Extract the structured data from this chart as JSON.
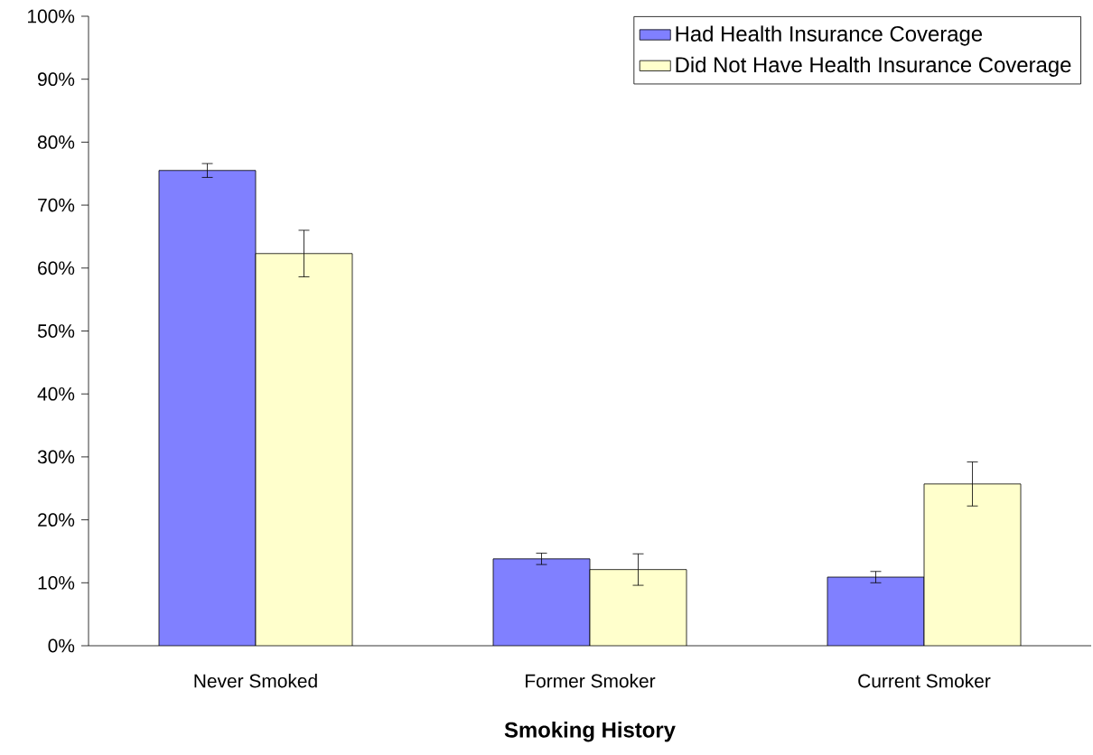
{
  "chart_data": {
    "type": "bar",
    "xlabel": "Smoking History",
    "categories": [
      "Never Smoked",
      "Former Smoker",
      "Current Smoker"
    ],
    "series": [
      {
        "name": "Had Health Insurance Coverage",
        "color": "#8080ff",
        "values": [
          75.5,
          13.8,
          10.9
        ],
        "errors": [
          1.1,
          0.9,
          0.9
        ]
      },
      {
        "name": "Did Not Have Health Insurance Coverage",
        "color": "#ffffcc",
        "values": [
          62.3,
          12.1,
          25.7
        ],
        "errors": [
          3.7,
          2.5,
          3.5
        ]
      }
    ],
    "ylim": [
      0,
      100
    ],
    "yticks": [
      {
        "value": 0,
        "label": "0%"
      },
      {
        "value": 10,
        "label": "10%"
      },
      {
        "value": 20,
        "label": "20%"
      },
      {
        "value": 30,
        "label": "30%"
      },
      {
        "value": 40,
        "label": "40%"
      },
      {
        "value": 50,
        "label": "50%"
      },
      {
        "value": 60,
        "label": "60%"
      },
      {
        "value": 70,
        "label": "70%"
      },
      {
        "value": 80,
        "label": "80%"
      },
      {
        "value": 90,
        "label": "90%"
      },
      {
        "value": 100,
        "label": "100%"
      }
    ],
    "legend": "top right"
  }
}
